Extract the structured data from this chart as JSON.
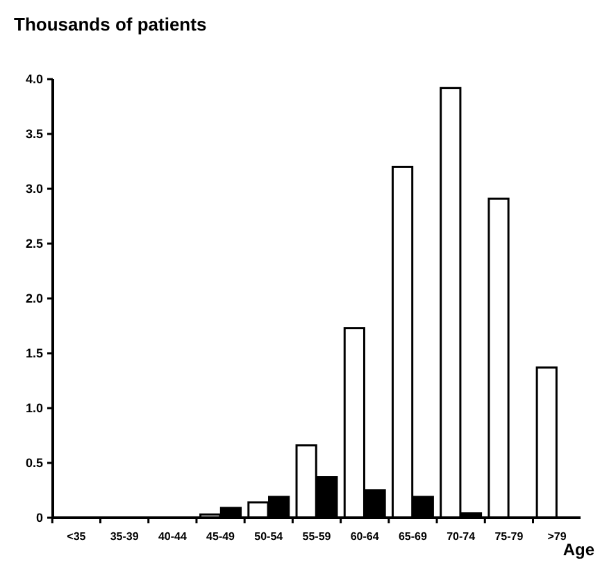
{
  "chart_data": {
    "type": "bar",
    "ylabel": "Thousands of patients",
    "xlabel": "Age",
    "categories": [
      "<35",
      "35-39",
      "40-44",
      "45-49",
      "50-54",
      "55-59",
      "60-64",
      "65-69",
      "70-74",
      "75-79",
      ">79"
    ],
    "series": [
      {
        "color": "#ffffff",
        "values": [
          0,
          null,
          null,
          0.03,
          0.14,
          0.66,
          1.73,
          3.2,
          3.92,
          2.91,
          1.37
        ]
      },
      {
        "color": "#000000",
        "values": [
          0,
          null,
          null,
          0.09,
          0.19,
          0.37,
          0.25,
          0.19,
          0.04,
          0,
          0
        ]
      }
    ],
    "ylim": [
      0,
      4
    ],
    "yticks": [
      0,
      {
        "value": 0.5,
        "label": "0.5"
      },
      {
        "value": 1,
        "label": "1.0"
      },
      {
        "value": 1.5,
        "label": "1.5"
      },
      {
        "value": 2,
        "label": "2.0"
      },
      {
        "value": 2.5,
        "label": "2.5"
      },
      {
        "value": 3,
        "label": "3.0"
      },
      {
        "value": 3.5,
        "label": "3.5"
      },
      {
        "value": 4,
        "label": "4.0"
      }
    ],
    "grid": false
  }
}
